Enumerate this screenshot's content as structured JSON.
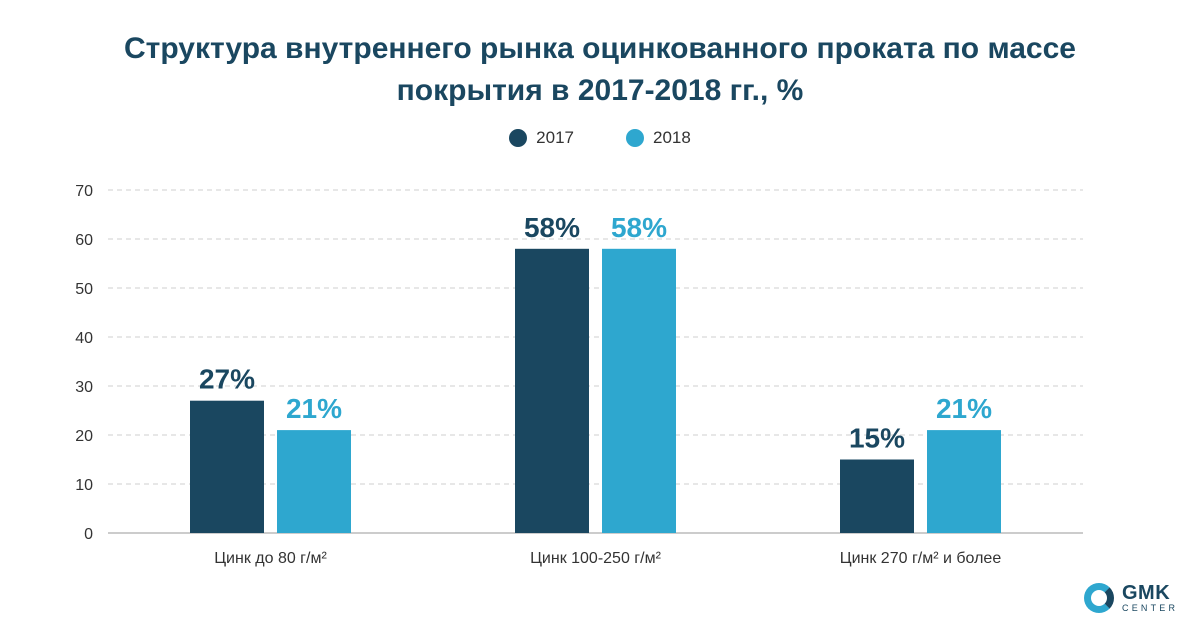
{
  "title": {
    "line1": "Структура внутреннего рынка оцинкованного проката по массе",
    "line2": "покрытия в 2017-2018 гг., %"
  },
  "logo": {
    "name": "GMK",
    "sub": "CENTER"
  },
  "colors": {
    "series_2017": "#1a4760",
    "series_2018": "#2ea7cf",
    "grid": "#cfcfcf",
    "axis_text": "#333333"
  },
  "chart_data": {
    "type": "bar",
    "title": "Структура внутреннего рынка оцинкованного проката по массе покрытия в 2017-2018 гг., %",
    "categories": [
      "Цинк до 80 г/м²",
      "Цинк 100-250 г/м²",
      "Цинк 270 г/м² и более"
    ],
    "series": [
      {
        "name": "2017",
        "values": [
          27,
          58,
          15
        ],
        "labels": [
          "27%",
          "58%",
          "15%"
        ],
        "color": "#1a4760"
      },
      {
        "name": "2018",
        "values": [
          21,
          58,
          21
        ],
        "labels": [
          "21%",
          "58%",
          "21%"
        ],
        "color": "#2ea7cf"
      }
    ],
    "ylim": [
      0,
      70
    ],
    "yticks": [
      0,
      10,
      20,
      30,
      40,
      50,
      60,
      70
    ],
    "grid": true,
    "legend": "top-center"
  }
}
